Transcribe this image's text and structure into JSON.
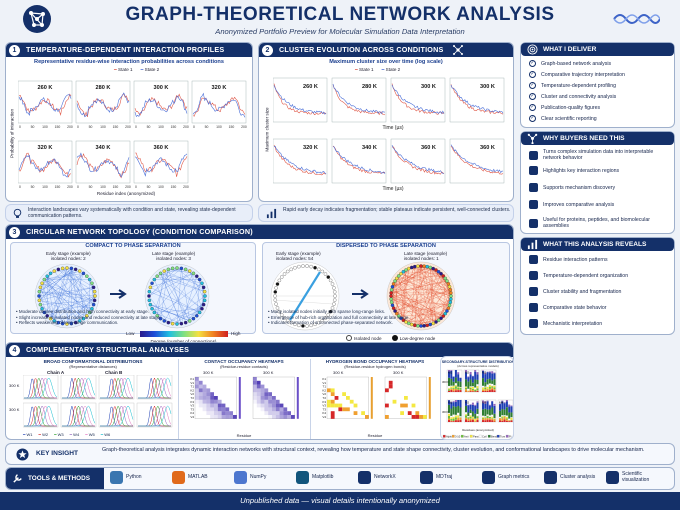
{
  "header": {
    "title": "GRAPH-THEORETICAL NETWORK ANALYSIS",
    "subtitle": "Anonymized Portfolio Preview for Molecular Simulation Data Interpretation"
  },
  "sections": {
    "s1": {
      "num": "1",
      "title": "TEMPERATURE-DEPENDENT INTERACTION PROFILES",
      "subtitle": "Representative residue-wise interaction probabilities across conditions",
      "legend": [
        "State 1",
        "State 2"
      ],
      "panels": [
        "260 K",
        "280 K",
        "300 K",
        "320 K",
        "320 K",
        "340 K",
        "360 K"
      ],
      "ylabel": "Probability of interaction",
      "xlabel": "Residue index (anonymized)",
      "xticks": [
        "0",
        "50",
        "100",
        "150",
        "200"
      ],
      "note": "Interaction landscapes vary systematically with condition and state, revealing state-dependent communication patterns."
    },
    "s2": {
      "num": "2",
      "title": "CLUSTER EVOLUTION ACROSS CONDITIONS",
      "subtitle": "Maximum cluster size over time (log scale)",
      "legend": [
        "State 1",
        "State 2"
      ],
      "panels": [
        "260 K",
        "280 K",
        "300 K",
        "300 K",
        "320 K",
        "340 K",
        "360 K",
        "360 K"
      ],
      "ylabel": "Maximum cluster size",
      "xlabel": "Time (µs)",
      "note": "Rapid early decay indicates fragmentation; stable plateaus indicate persistent, well-connected clusters."
    },
    "s3": {
      "num": "3",
      "title": "CIRCULAR NETWORK TOPOLOGY (CONDITION COMPARISON)",
      "left": {
        "heading": "COMPACT TO PHASE SEPARATION",
        "early": "Early stage (example)",
        "early_nodes": "isolated nodes: 2",
        "late": "Late stage (example)",
        "late_nodes": "isolated nodes: 3",
        "bullets": [
          "Moderate degree distribution and high connectivity at early stage.",
          "Slight increase in isolated nodes and reduced connectivity at late stage.",
          "Reflects weakening of long-range communication."
        ]
      },
      "right": {
        "heading": "DISPERSED TO PHASE SEPARATION",
        "early": "Early stage (example)",
        "early_nodes": "isolated nodes: 54",
        "late": "Late stage (example)",
        "late_nodes": "isolated nodes: 1",
        "bullets": [
          "Many isolated nodes initially with sparse long-range links.",
          "Emergence of hub-rich organization and full connectivity at late stage.",
          "Indicates formation of a connected phase-separated network."
        ]
      },
      "colorbar": {
        "low": "Low",
        "high": "High",
        "label": "Degree (number of connections)"
      },
      "legend": {
        "isolated": "Isolated node",
        "low_degree": "Low-degree node"
      }
    },
    "s4": {
      "num": "4",
      "title": "COMPLEMENTARY STRUCTURAL ANALYSES",
      "a": {
        "title": "BROAD CONFORMATIONAL DISTRIBUTIONS",
        "subtitle": "(Representative distances)",
        "chains": [
          "Chain A",
          "Chain B"
        ],
        "rows": [
          "300 K",
          "300 K"
        ],
        "legend": [
          "W1",
          "W2",
          "W3",
          "W4",
          "W5",
          "W6"
        ]
      },
      "b": {
        "title": "CONTACT OCCUPANCY HEATMAPS",
        "subtitle": "(Residue-residue contacts)",
        "maps": [
          "300 K",
          "300 K"
        ],
        "xlabel": "Residue",
        "rows": [
          "K1",
          "V1",
          "T1",
          "K2",
          "V2",
          "T2",
          "K3",
          "V3",
          "T3",
          "K4",
          "V4",
          "L1",
          "L12"
        ]
      },
      "c": {
        "title": "HYDROGEN BOND OCCUPANCY HEATMAPS",
        "subtitle": "(Residue-residue hydrogen bonds)",
        "maps": [
          "300 K",
          "300 K"
        ],
        "xlabel": "Residue",
        "rows": [
          "K1",
          "V1",
          "T1",
          "K2",
          "V2",
          "T2",
          "K3",
          "V3",
          "T3",
          "K4",
          "V4",
          "L1",
          "L12"
        ]
      },
      "d": {
        "title": "SECONDARY-STRUCTURE DISTRIBUTION",
        "subtitle": "(Across representative models)",
        "ylabel": "Fraction",
        "xlabel": "Residues (anonymized)",
        "panels": [
          "M1",
          "M2",
          "M3",
          "M1",
          "M2",
          "M3",
          "M4"
        ],
        "rows": [
          "300 K",
          "300 K"
        ],
        "legend": [
          "Alpha",
          "3-10",
          "Anti",
          "Para",
          "Coil",
          "Bend",
          "Turn",
          "Pi"
        ],
        "colors": [
          "#d62728",
          "#f0a030",
          "#6cbf3c",
          "#f4e842",
          "#ffffff",
          "#2e7d32",
          "#1f3fb4",
          "#9467bd"
        ]
      }
    }
  },
  "insight": {
    "label": "KEY INSIGHT",
    "text": "Graph-theoretical analysis integrates dynamic interaction networks with structural context, revealing how temperature and state shape connectivity, cluster evolution, and conformational landscapes to drive molecular mechanism."
  },
  "tools": {
    "label": "TOOLS & METHODS",
    "items": [
      {
        "name": "Python",
        "icon": "python-icon",
        "color": "#3a76b0"
      },
      {
        "name": "MATLAB",
        "icon": "matlab-icon",
        "color": "#e06a1b"
      },
      {
        "name": "NumPy",
        "icon": "numpy-icon",
        "color": "#4d77cf"
      },
      {
        "name": "Matplotlib",
        "icon": "matplotlib-icon",
        "color": "#11557c"
      },
      {
        "name": "NetworkX",
        "icon": "networkx-icon",
        "color": "#143069"
      },
      {
        "name": "MDTraj",
        "icon": "mdtraj-icon",
        "color": "#143069"
      },
      {
        "name": "Graph metrics",
        "icon": "graph-metrics-icon",
        "color": "#143069"
      },
      {
        "name": "Cluster analysis",
        "icon": "cluster-icon",
        "color": "#143069"
      },
      {
        "name": "Scientific visualization",
        "icon": "visualization-icon",
        "color": "#143069"
      }
    ]
  },
  "sidebar": {
    "deliver": {
      "title": "WHAT I DELIVER",
      "items": [
        "Graph-based network analysis",
        "Comparative trajectory interpretation",
        "Temperature-dependent profiling",
        "Cluster and connectivity analysis",
        "Publication-quality figures",
        "Clear scientific reporting"
      ]
    },
    "buyers": {
      "title": "WHY BUYERS NEED THIS",
      "items": [
        "Turns complex simulation data into interpretable network behavior",
        "Highlights key interaction regions",
        "Supports mechanism discovery",
        "Improves comparative analysis",
        "Useful for proteins, peptides, and biomolecular assemblies"
      ]
    },
    "reveals": {
      "title": "WHAT THIS ANALYSIS REVEALS",
      "items": [
        "Residue interaction patterns",
        "Temperature-dependent organization",
        "Cluster stability and fragmentation",
        "Comparative state behavior",
        "Mechanistic interpretation"
      ]
    }
  },
  "footer": {
    "text": "Unpublished data — visual details intentionally anonymized"
  },
  "colors": {
    "navy": "#143069",
    "state1": "#e05a4a",
    "state2": "#4a6fd8"
  }
}
